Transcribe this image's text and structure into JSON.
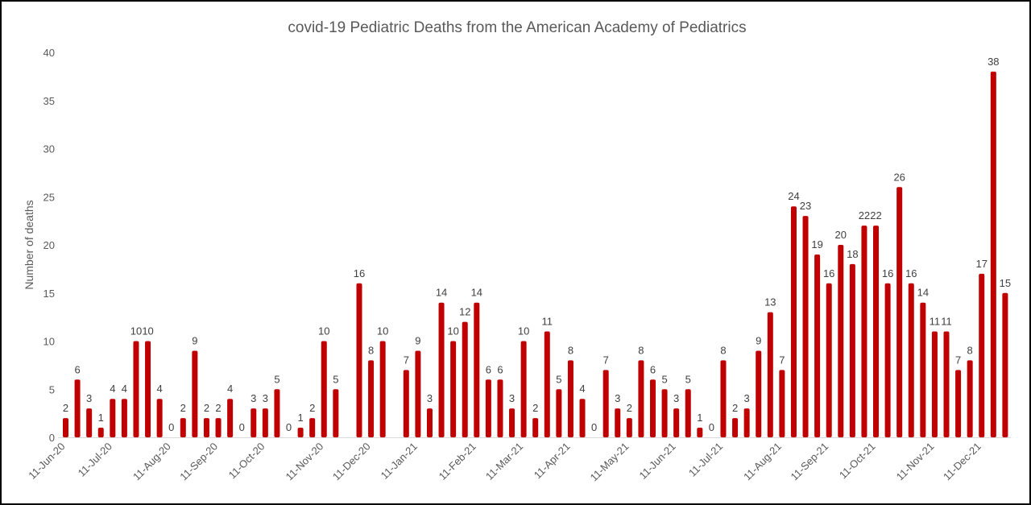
{
  "chart_data": {
    "type": "bar",
    "title": "covid-19 Pediatric Deaths from the  American Academy of Pediatrics",
    "xlabel": "",
    "ylabel": "Number of deaths",
    "ylim": [
      0,
      40
    ],
    "yticks": [
      0,
      5,
      10,
      15,
      20,
      25,
      30,
      35,
      40
    ],
    "grid": false,
    "bar_color": "#C00000",
    "series": [
      {
        "name": "Pediatric deaths",
        "values": [
          2,
          6,
          3,
          1,
          4,
          4,
          10,
          10,
          4,
          0,
          2,
          9,
          2,
          2,
          4,
          0,
          3,
          3,
          5,
          0,
          1,
          2,
          10,
          5,
          null,
          16,
          8,
          10,
          null,
          7,
          9,
          3,
          14,
          10,
          12,
          14,
          6,
          6,
          3,
          10,
          2,
          11,
          5,
          8,
          4,
          0,
          7,
          3,
          2,
          8,
          6,
          5,
          3,
          5,
          1,
          0,
          8,
          2,
          3,
          9,
          13,
          7,
          24,
          23,
          19,
          16,
          20,
          18,
          22,
          22,
          16,
          26,
          16,
          14,
          11,
          11,
          7,
          8,
          17,
          38,
          15
        ]
      }
    ],
    "x_tick_labels": [
      {
        "label": "11-Jun-20",
        "index": 0
      },
      {
        "label": "11-Jul-20",
        "index": 4
      },
      {
        "label": "11-Aug-20",
        "index": 9
      },
      {
        "label": "11-Sep-20",
        "index": 13
      },
      {
        "label": "11-Oct-20",
        "index": 17
      },
      {
        "label": "11-Nov-20",
        "index": 22
      },
      {
        "label": "11-Dec-20",
        "index": 26
      },
      {
        "label": "11-Jan-21",
        "index": 30
      },
      {
        "label": "11-Feb-21",
        "index": 35
      },
      {
        "label": "11-Mar-21",
        "index": 39
      },
      {
        "label": "11-Apr-21",
        "index": 43
      },
      {
        "label": "11-May-21",
        "index": 48
      },
      {
        "label": "11-Jun-21",
        "index": 52
      },
      {
        "label": "11-Jul-21",
        "index": 56
      },
      {
        "label": "11-Aug-21",
        "index": 61
      },
      {
        "label": "11-Sep-21",
        "index": 65
      },
      {
        "label": "11-Oct-21",
        "index": 69
      },
      {
        "label": "11-Nov-21",
        "index": 74
      },
      {
        "label": "11-Dec-21",
        "index": 78
      }
    ]
  }
}
